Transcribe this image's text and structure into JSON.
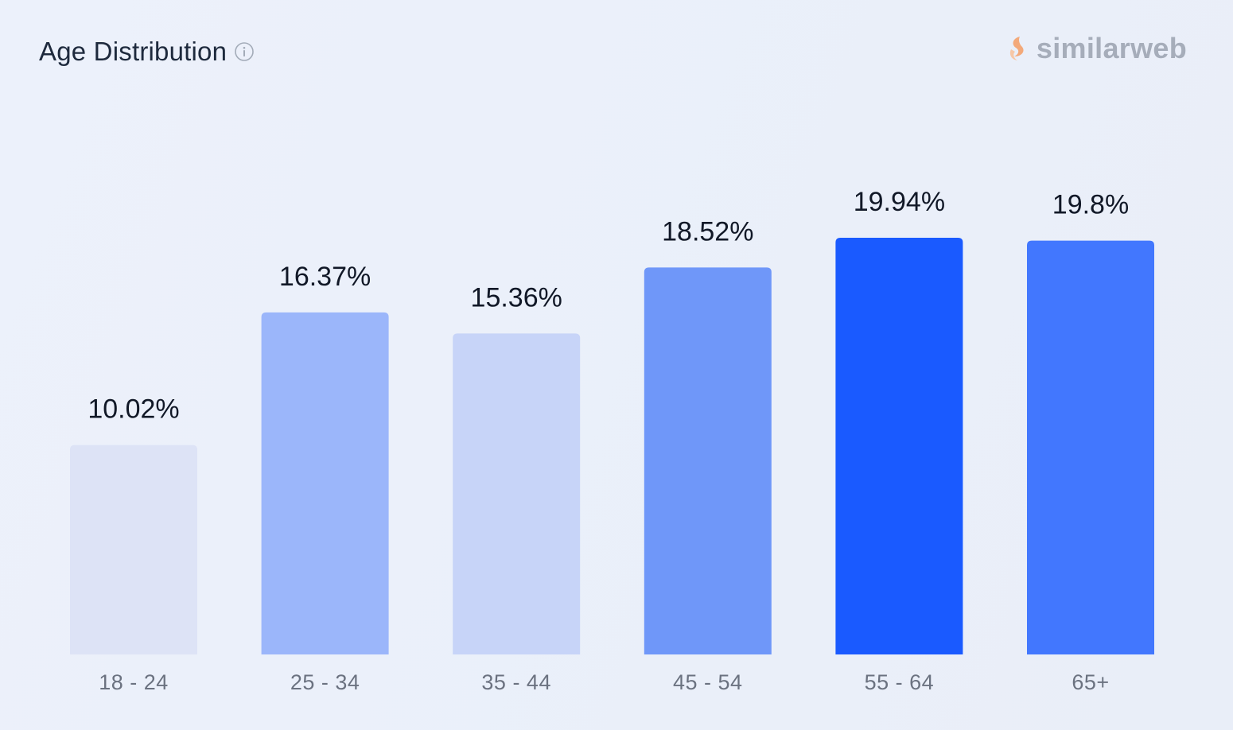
{
  "header": {
    "title": "Age Distribution",
    "info_icon": "info-icon"
  },
  "brand": {
    "name": "similarweb",
    "logo_icon": "similarweb-logo-icon",
    "logo_color": "#f3a97a"
  },
  "chart_data": {
    "type": "bar",
    "title": "Age Distribution",
    "xlabel": "",
    "ylabel": "",
    "categories": [
      "18 - 24",
      "25 - 34",
      "35 - 44",
      "45 - 54",
      "55 - 64",
      "65+"
    ],
    "values": [
      10.02,
      16.37,
      15.36,
      18.52,
      19.94,
      19.8
    ],
    "value_labels": [
      "10.02%",
      "16.37%",
      "15.36%",
      "18.52%",
      "19.94%",
      "19.8%"
    ],
    "colors": [
      "#dde3f6",
      "#9bb6fa",
      "#c7d4f8",
      "#6f97f9",
      "#1a5aff",
      "#4277fe"
    ],
    "ylim": [
      0,
      19.94
    ],
    "grid": false,
    "legend": "none"
  }
}
